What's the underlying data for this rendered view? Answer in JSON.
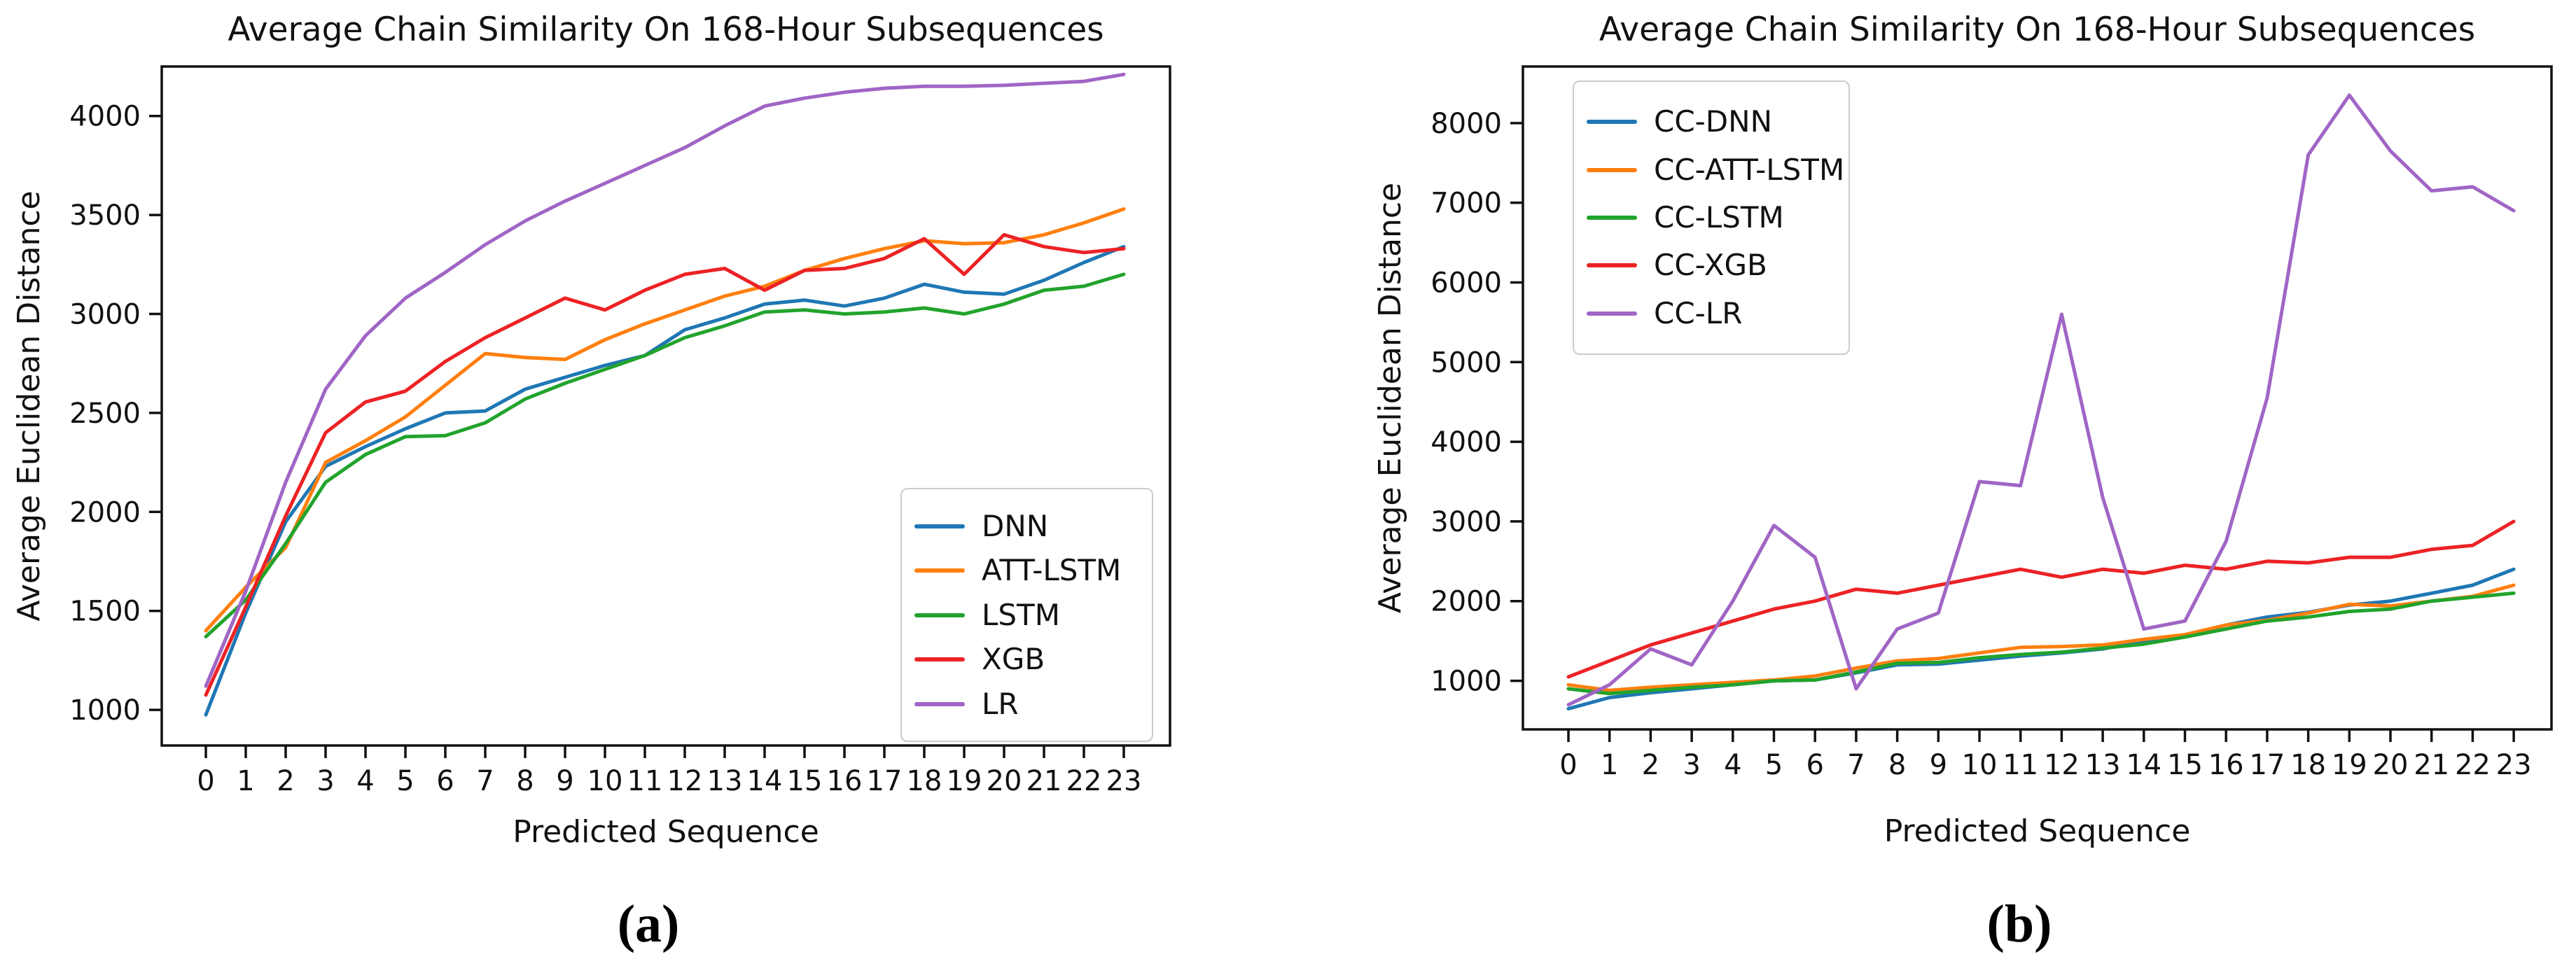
{
  "figure": {
    "background": "#ffffff",
    "text_color": "#111111",
    "spine_color": "#111111"
  },
  "captions": {
    "a": "(a)",
    "b": "(b)"
  },
  "chart_data": [
    {
      "id": "a",
      "type": "line",
      "title": "Average Chain Similarity On 168-Hour Subsequences",
      "xlabel": "Predicted Sequence",
      "ylabel": "Average Euclidean Distance",
      "x": [
        0,
        1,
        2,
        3,
        4,
        5,
        6,
        7,
        8,
        9,
        10,
        11,
        12,
        13,
        14,
        15,
        16,
        17,
        18,
        19,
        20,
        21,
        22,
        23
      ],
      "x_tick_labels": [
        "0",
        "1",
        "2",
        "3",
        "4",
        "5",
        "6",
        "7",
        "8",
        "9",
        "10",
        "11",
        "12",
        "13",
        "14",
        "15",
        "16",
        "17",
        "18",
        "19",
        "20",
        "21",
        "22",
        "23"
      ],
      "y_ticks": [
        1000,
        1500,
        2000,
        2500,
        3000,
        3500,
        4000
      ],
      "ylim": [
        820,
        4250
      ],
      "grid": false,
      "legend_position": "lower right",
      "series": [
        {
          "name": "DNN",
          "color": "#1f77b4",
          "values": [
            975,
            1490,
            1950,
            2230,
            2330,
            2420,
            2500,
            2510,
            2620,
            2680,
            2740,
            2790,
            2920,
            2980,
            3050,
            3070,
            3040,
            3080,
            3150,
            3110,
            3100,
            3170,
            3260,
            3340
          ]
        },
        {
          "name": "ATT-LSTM",
          "color": "#ff7f0e",
          "values": [
            1400,
            1620,
            1820,
            2250,
            2360,
            2480,
            2640,
            2800,
            2780,
            2770,
            2870,
            2950,
            3020,
            3090,
            3140,
            3220,
            3280,
            3330,
            3370,
            3355,
            3360,
            3400,
            3460,
            3530
          ]
        },
        {
          "name": "LSTM",
          "color": "#22a32c",
          "values": [
            1370,
            1555,
            1840,
            2150,
            2290,
            2380,
            2385,
            2450,
            2570,
            2650,
            2720,
            2790,
            2880,
            2940,
            3010,
            3020,
            3000,
            3010,
            3030,
            3000,
            3050,
            3120,
            3140,
            3200
          ]
        },
        {
          "name": "XGB",
          "color": "#ec2225",
          "values": [
            1075,
            1520,
            1980,
            2400,
            2555,
            2610,
            2760,
            2880,
            2980,
            3080,
            3020,
            3120,
            3200,
            3230,
            3120,
            3220,
            3230,
            3280,
            3380,
            3200,
            3400,
            3340,
            3310,
            3330
          ]
        },
        {
          "name": "LR",
          "color": "#a065c5",
          "values": [
            1120,
            1600,
            2150,
            2620,
            2890,
            3080,
            3210,
            3350,
            3470,
            3570,
            3660,
            3750,
            3840,
            3950,
            4050,
            4090,
            4120,
            4140,
            4150,
            4150,
            4155,
            4165,
            4175,
            4210
          ]
        }
      ]
    },
    {
      "id": "b",
      "type": "line",
      "title": "Average Chain Similarity On 168-Hour Subsequences",
      "xlabel": "Predicted Sequence",
      "ylabel": "Average Euclidean Distance",
      "x": [
        0,
        1,
        2,
        3,
        4,
        5,
        6,
        7,
        8,
        9,
        10,
        11,
        12,
        13,
        14,
        15,
        16,
        17,
        18,
        19,
        20,
        21,
        22,
        23
      ],
      "x_tick_labels": [
        "0",
        "1",
        "2",
        "3",
        "4",
        "5",
        "6",
        "7",
        "8",
        "9",
        "10",
        "11",
        "12",
        "13",
        "14",
        "15",
        "16",
        "17",
        "18",
        "19",
        "20",
        "21",
        "22",
        "23"
      ],
      "y_ticks": [
        1000,
        2000,
        3000,
        4000,
        5000,
        6000,
        7000,
        8000
      ],
      "ylim": [
        390,
        8710
      ],
      "grid": false,
      "legend_position": "upper left",
      "series": [
        {
          "name": "CC-DNN",
          "color": "#1f77b4",
          "values": [
            650,
            790,
            850,
            900,
            950,
            1000,
            1010,
            1100,
            1200,
            1210,
            1260,
            1310,
            1350,
            1400,
            1500,
            1560,
            1700,
            1800,
            1860,
            1950,
            2000,
            2100,
            2200,
            2400
          ]
        },
        {
          "name": "CC-ATT-LSTM",
          "color": "#ff7f0e",
          "values": [
            950,
            880,
            920,
            950,
            980,
            1010,
            1060,
            1160,
            1250,
            1280,
            1350,
            1420,
            1430,
            1450,
            1520,
            1580,
            1700,
            1760,
            1850,
            1960,
            1940,
            2000,
            2060,
            2200
          ]
        },
        {
          "name": "CC-LSTM",
          "color": "#22a32c",
          "values": [
            900,
            840,
            880,
            920,
            950,
            1000,
            1010,
            1110,
            1220,
            1230,
            1290,
            1330,
            1360,
            1410,
            1460,
            1550,
            1650,
            1750,
            1800,
            1870,
            1900,
            2000,
            2050,
            2100
          ]
        },
        {
          "name": "CC-XGB",
          "color": "#ec2225",
          "values": [
            1050,
            1250,
            1450,
            1600,
            1750,
            1900,
            2000,
            2150,
            2100,
            2200,
            2300,
            2400,
            2300,
            2400,
            2350,
            2450,
            2400,
            2500,
            2480,
            2550,
            2550,
            2650,
            2700,
            3000
          ]
        },
        {
          "name": "CC-LR",
          "color": "#a065c5",
          "values": [
            700,
            950,
            1400,
            1200,
            2000,
            2950,
            2550,
            900,
            1650,
            1850,
            3500,
            3450,
            5600,
            3300,
            1650,
            1750,
            2750,
            4550,
            7600,
            8350,
            7650,
            7150,
            7200,
            6900
          ]
        }
      ]
    }
  ]
}
